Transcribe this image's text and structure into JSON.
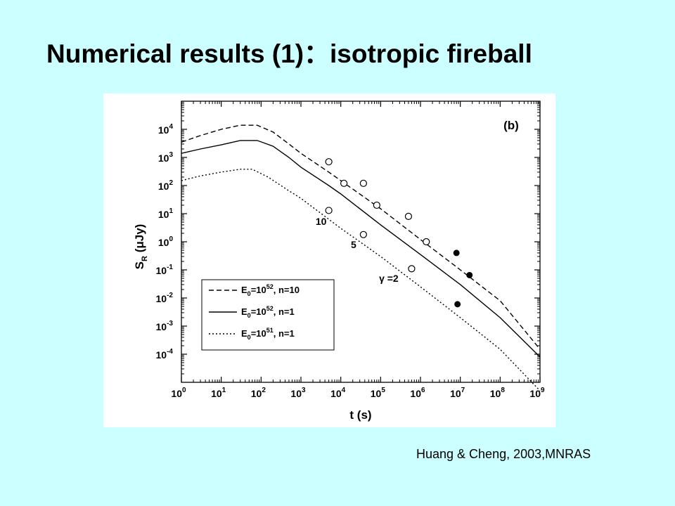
{
  "slide": {
    "title": "Numerical results (1)：isotropic fireball",
    "citation": "Huang & Cheng, 2003,MNRAS",
    "background": "#ccffff"
  },
  "chart_data": {
    "type": "line",
    "panel_label": "(b)",
    "xlabel": "t (s)",
    "ylabel": "S_R (μJy)",
    "x_scale": "log",
    "y_scale": "log",
    "xlim": [
      1,
      1000000000
    ],
    "ylim": [
      1e-05,
      100000
    ],
    "x_ticks": [
      {
        "value": 1,
        "base": "10",
        "exp": "0"
      },
      {
        "value": 10,
        "base": "10",
        "exp": "1"
      },
      {
        "value": 100,
        "base": "10",
        "exp": "2"
      },
      {
        "value": 1000,
        "base": "10",
        "exp": "3"
      },
      {
        "value": 10000,
        "base": "10",
        "exp": "4"
      },
      {
        "value": 100000,
        "base": "10",
        "exp": "5"
      },
      {
        "value": 1000000,
        "base": "10",
        "exp": "6"
      },
      {
        "value": 10000000,
        "base": "10",
        "exp": "7"
      },
      {
        "value": 100000000,
        "base": "10",
        "exp": "8"
      },
      {
        "value": 1000000000,
        "base": "10",
        "exp": "9"
      }
    ],
    "y_ticks": [
      {
        "value": 0.0001,
        "base": "10",
        "exp": "-4"
      },
      {
        "value": 0.001,
        "base": "10",
        "exp": "-3"
      },
      {
        "value": 0.01,
        "base": "10",
        "exp": "-2"
      },
      {
        "value": 0.1,
        "base": "10",
        "exp": "-1"
      },
      {
        "value": 1,
        "base": "10",
        "exp": "0"
      },
      {
        "value": 10,
        "base": "10",
        "exp": "1"
      },
      {
        "value": 100,
        "base": "10",
        "exp": "2"
      },
      {
        "value": 1000,
        "base": "10",
        "exp": "3"
      },
      {
        "value": 10000,
        "base": "10",
        "exp": "4"
      }
    ],
    "series": [
      {
        "name": "E0=10^52, n=10",
        "legend_parts": [
          "E",
          "0",
          "=10",
          "52",
          ", n=10"
        ],
        "style": "dashed",
        "points": [
          [
            1,
            3500
          ],
          [
            3,
            6000
          ],
          [
            10,
            10000
          ],
          [
            30,
            14000
          ],
          [
            80,
            14000
          ],
          [
            200,
            8000
          ],
          [
            500,
            3000
          ],
          [
            1000,
            1400
          ],
          [
            5000,
            300
          ],
          [
            10000,
            150
          ],
          [
            100000,
            15
          ],
          [
            1000000,
            1.2
          ],
          [
            10000000,
            0.1
          ],
          [
            100000000,
            0.008
          ],
          [
            1000000000,
            0.00015
          ]
        ]
      },
      {
        "name": "E0=10^52, n=1",
        "legend_parts": [
          "E",
          "0",
          "=10",
          "52",
          ", n=1"
        ],
        "style": "solid",
        "points": [
          [
            1,
            1400
          ],
          [
            3,
            2000
          ],
          [
            10,
            2800
          ],
          [
            30,
            4000
          ],
          [
            80,
            4000
          ],
          [
            200,
            2500
          ],
          [
            500,
            1000
          ],
          [
            1000,
            450
          ],
          [
            5000,
            100
          ],
          [
            10000,
            50
          ],
          [
            100000,
            4
          ],
          [
            1000000,
            0.35
          ],
          [
            10000000,
            0.03
          ],
          [
            100000000,
            0.002
          ],
          [
            1000000000,
            8e-05
          ]
        ]
      },
      {
        "name": "E0=10^51, n=1",
        "legend_parts": [
          "E",
          "0",
          "=10",
          "51",
          ", n=1"
        ],
        "style": "dotted",
        "points": [
          [
            1,
            150
          ],
          [
            3,
            220
          ],
          [
            10,
            300
          ],
          [
            30,
            380
          ],
          [
            60,
            380
          ],
          [
            150,
            200
          ],
          [
            500,
            65
          ],
          [
            1000,
            35
          ],
          [
            10000,
            3
          ],
          [
            100000,
            0.3
          ],
          [
            1000000,
            0.025
          ],
          [
            10000000,
            0.002
          ],
          [
            100000000,
            0.00015
          ],
          [
            1000000000,
            5e-06
          ]
        ]
      }
    ],
    "open_markers": [
      [
        5000,
        700
      ],
      [
        12000,
        120
      ],
      [
        37000,
        120
      ],
      [
        80000,
        20
      ],
      [
        500000,
        8
      ],
      [
        1400000,
        1
      ],
      [
        5000,
        13
      ],
      [
        37000,
        1.8
      ],
      [
        600000,
        0.11
      ]
    ],
    "filled_markers": [
      [
        8000000,
        0.4
      ],
      [
        17000000,
        0.065
      ],
      [
        8500000,
        0.006
      ]
    ],
    "annotations": [
      {
        "text": "10",
        "x": 3200,
        "y": 4
      },
      {
        "text": "5",
        "x": 21000,
        "y": 0.6
      },
      {
        "text": "γ =2",
        "x": 160000,
        "y": 0.038
      }
    ]
  }
}
